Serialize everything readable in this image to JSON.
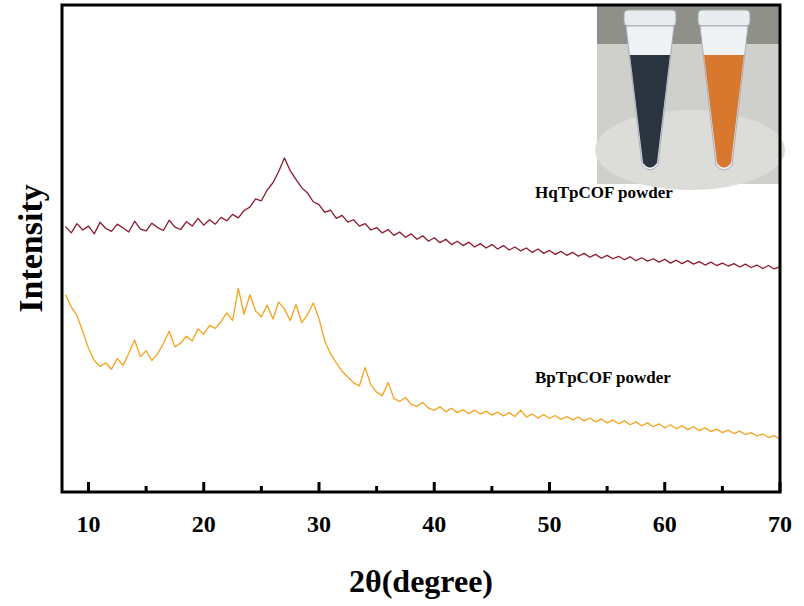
{
  "chart_data": {
    "type": "line",
    "x_label": "2θ(degree)",
    "y_label": "Intensity",
    "x": [
      8,
      8.5,
      9,
      9.5,
      10,
      10.5,
      11,
      11.5,
      12,
      12.5,
      13,
      13.5,
      14,
      14.5,
      15,
      15.5,
      16,
      16.5,
      17,
      17.5,
      18,
      18.5,
      19,
      19.5,
      20,
      20.5,
      21,
      21.5,
      22,
      22.5,
      23,
      23.5,
      24,
      24.5,
      25,
      25.5,
      26,
      26.5,
      27,
      27.5,
      28,
      28.5,
      29,
      29.5,
      30,
      30.5,
      31,
      31.5,
      32,
      32.5,
      33,
      33.5,
      34,
      34.5,
      35,
      35.5,
      36,
      36.5,
      37,
      37.5,
      38,
      38.5,
      39,
      39.5,
      40,
      40.5,
      41,
      41.5,
      42,
      42.5,
      43,
      43.5,
      44,
      44.5,
      45,
      45.5,
      46,
      46.5,
      47,
      47.5,
      48,
      48.5,
      49,
      49.5,
      50,
      50.5,
      51,
      51.5,
      52,
      52.5,
      53,
      53.5,
      54,
      54.5,
      55,
      55.5,
      56,
      56.5,
      57,
      57.5,
      58,
      58.5,
      59,
      59.5,
      60,
      60.5,
      61,
      61.5,
      62,
      62.5,
      63,
      63.5,
      64,
      64.5,
      65,
      65.5,
      66,
      66.5,
      67,
      67.5,
      68,
      68.5,
      69,
      69.5,
      70
    ],
    "series": [
      {
        "name": "HqTpCOF powder",
        "color": "#8b1a2e",
        "values": [
          54.5,
          53.2,
          55.1,
          53.8,
          54.6,
          53.0,
          55.4,
          54.1,
          53.5,
          55.0,
          54.2,
          53.4,
          55.6,
          54.0,
          53.6,
          55.2,
          54.3,
          53.7,
          55.8,
          54.4,
          53.9,
          55.5,
          54.6,
          56.2,
          54.8,
          55.9,
          55.0,
          56.4,
          55.7,
          57.0,
          56.3,
          57.8,
          58.5,
          60.2,
          59.8,
          62.0,
          63.5,
          65.8,
          68.6,
          66.0,
          64.2,
          62.5,
          61.4,
          59.6,
          59.0,
          57.4,
          57.9,
          56.2,
          56.8,
          55.4,
          55.9,
          54.6,
          55.1,
          53.8,
          54.3,
          53.2,
          53.9,
          52.7,
          53.4,
          52.3,
          53.0,
          51.9,
          52.6,
          51.5,
          52.2,
          51.2,
          51.9,
          50.8,
          51.5,
          50.6,
          51.3,
          50.3,
          51.0,
          50.1,
          50.8,
          49.9,
          50.6,
          49.7,
          50.3,
          49.5,
          50.1,
          49.2,
          49.9,
          49.0,
          49.6,
          48.8,
          49.4,
          48.6,
          49.2,
          48.4,
          49.0,
          48.2,
          48.8,
          48.0,
          48.6,
          47.9,
          48.4,
          47.7,
          48.3,
          47.5,
          48.1,
          47.4,
          47.9,
          47.2,
          47.8,
          47.0,
          47.6,
          46.9,
          47.5,
          46.8,
          47.3,
          46.6,
          47.2,
          46.5,
          47.0,
          46.4,
          46.9,
          46.2,
          46.8,
          46.1,
          46.6,
          45.9,
          46.5,
          45.8,
          46.3
        ]
      },
      {
        "name": "BpTpCOF powder",
        "color": "#f7a21b",
        "values": [
          40.5,
          38.0,
          36.2,
          33.0,
          29.5,
          27.0,
          25.8,
          26.5,
          25.2,
          27.4,
          26.0,
          28.5,
          31.2,
          27.8,
          29.0,
          27.0,
          28.4,
          30.5,
          33.0,
          29.8,
          30.6,
          32.0,
          31.0,
          33.5,
          32.4,
          34.2,
          33.6,
          35.0,
          36.8,
          35.2,
          41.8,
          36.5,
          40.5,
          37.2,
          36.0,
          38.4,
          35.5,
          39.0,
          37.6,
          35.2,
          38.5,
          34.8,
          36.4,
          38.8,
          35.6,
          31.0,
          28.4,
          26.5,
          24.8,
          23.6,
          22.4,
          21.8,
          25.6,
          22.0,
          20.5,
          19.8,
          22.5,
          19.2,
          18.6,
          19.4,
          18.0,
          17.6,
          18.4,
          17.2,
          16.8,
          17.5,
          16.5,
          17.2,
          16.3,
          16.9,
          16.1,
          16.8,
          16.0,
          16.6,
          15.8,
          16.4,
          15.6,
          16.3,
          15.5,
          16.8,
          15.4,
          16.0,
          15.2,
          15.9,
          15.1,
          15.7,
          14.9,
          15.5,
          14.8,
          15.4,
          14.6,
          15.2,
          14.4,
          15.0,
          14.2,
          14.8,
          14.0,
          14.6,
          13.8,
          14.4,
          13.6,
          14.2,
          13.4,
          14.0,
          13.2,
          13.8,
          13.0,
          13.6,
          12.8,
          13.4,
          12.6,
          13.2,
          12.4,
          12.9,
          12.2,
          12.7,
          12.0,
          12.5,
          11.8,
          12.2,
          11.5,
          11.9,
          11.2,
          11.6,
          10.8
        ]
      }
    ],
    "xlim": [
      7.7,
      70
    ],
    "ylim": [
      0,
      100
    ],
    "xticks": [
      10,
      20,
      30,
      40,
      50,
      60,
      70
    ],
    "tick_labels": "x",
    "grid": false
  }
}
